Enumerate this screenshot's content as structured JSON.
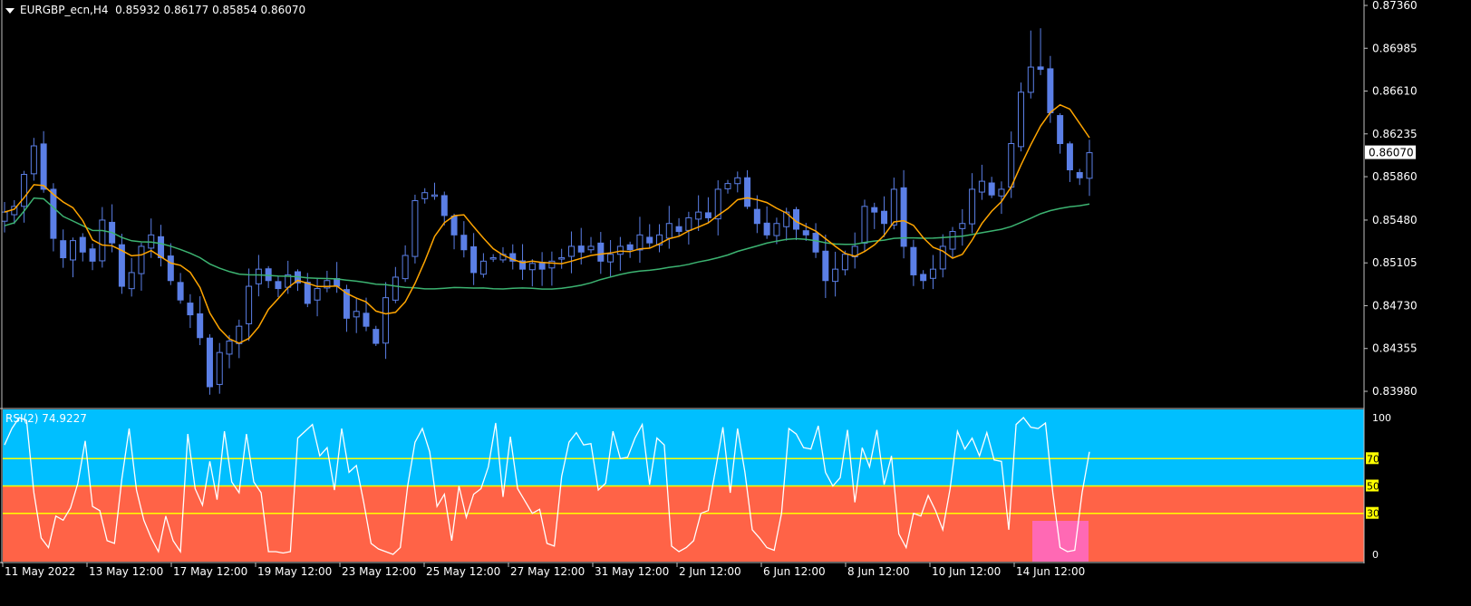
{
  "header": {
    "symbol": "EURGBP_ecn,H4",
    "open": "0.85932",
    "high": "0.86177",
    "low": "0.85854",
    "close": "0.86070"
  },
  "current_price_label": "0.86070",
  "indicator": {
    "label": "RSI(2) 74.9227"
  },
  "colors": {
    "background": "#000000",
    "candle": "#5b7fe6",
    "ma_fast": "#ffa500",
    "ma_slow": "#3cb371",
    "rsi_upper_bg": "#00bfff",
    "rsi_lower_bg": "#ff6347",
    "rsi_line": "#ffffff",
    "rsi_levels": "#ffff00",
    "highlight": "#ff69b4"
  },
  "chart_data": [
    {
      "type": "candlestick",
      "title": "EURGBP_ecn,H4",
      "ylim": [
        0.8378,
        0.8736
      ],
      "y_ticks": [
        "0.87360",
        "0.86985",
        "0.86610",
        "0.86235",
        "0.85860",
        "0.85480",
        "0.85105",
        "0.84730",
        "0.84355",
        "0.83980"
      ],
      "y_tick_values": [
        0.8736,
        0.86985,
        0.8661,
        0.86235,
        0.8586,
        0.8548,
        0.85105,
        0.8473,
        0.84355,
        0.8398
      ],
      "x_ticks": [
        "11 May 2022",
        "13 May 12:00",
        "17 May 12:00",
        "19 May 12:00",
        "23 May 12:00",
        "25 May 12:00",
        "27 May 12:00",
        "31 May 12:00",
        "2 Jun 12:00",
        "6 Jun 12:00",
        "8 Jun 12:00",
        "10 Jun 12:00",
        "14 Jun 12:00"
      ],
      "close_anchors": [
        0.8555,
        0.856,
        0.8588,
        0.8613,
        0.8575,
        0.8532,
        0.8515,
        0.853,
        0.852,
        0.8512,
        0.8548,
        0.8528,
        0.849,
        0.8502,
        0.8525,
        0.8535,
        0.8515,
        0.8495,
        0.8478,
        0.8465,
        0.8445,
        0.8402,
        0.8432,
        0.8442,
        0.8455,
        0.849,
        0.8505,
        0.8495,
        0.8488,
        0.85,
        0.8493,
        0.8475,
        0.8488,
        0.8495,
        0.849,
        0.8462,
        0.8468,
        0.8455,
        0.844,
        0.848,
        0.8498,
        0.8517,
        0.8565,
        0.8572,
        0.857,
        0.8552,
        0.8535,
        0.8522,
        0.8502,
        0.8512,
        0.8515,
        0.8518,
        0.8512,
        0.8505,
        0.851,
        0.8505,
        0.8512,
        0.8515,
        0.8525,
        0.852,
        0.8525,
        0.8512,
        0.8518,
        0.8525,
        0.8522,
        0.8535,
        0.8528,
        0.8535,
        0.8545,
        0.8538,
        0.855,
        0.8555,
        0.855,
        0.8575,
        0.858,
        0.8585,
        0.856,
        0.8545,
        0.8535,
        0.8545,
        0.8555,
        0.854,
        0.8535,
        0.852,
        0.8495,
        0.8505,
        0.8518,
        0.8525,
        0.856,
        0.8555,
        0.8545,
        0.8575,
        0.8525,
        0.85,
        0.8495,
        0.8505,
        0.8525,
        0.8538,
        0.8545,
        0.8575,
        0.8582,
        0.857,
        0.8575,
        0.8615,
        0.866,
        0.8682,
        0.868,
        0.8642,
        0.8615,
        0.8592,
        0.8585,
        0.8607
      ],
      "series": [
        {
          "name": "",
          "values": []
        }
      ]
    },
    {
      "type": "line",
      "title": "RSI(2) 74.9227",
      "ylim": [
        0,
        100
      ],
      "y_ticks": [
        "100",
        "70",
        "50",
        "30",
        "0"
      ],
      "y_tick_values": [
        100,
        70,
        50,
        30,
        0
      ],
      "levels": [
        70,
        50,
        30
      ],
      "values": [
        80,
        92,
        100,
        98,
        45,
        12,
        5,
        28,
        25,
        34,
        52,
        83,
        35,
        32,
        10,
        8,
        55,
        92,
        47,
        25,
        12,
        2,
        28,
        10,
        2,
        88,
        48,
        36,
        68,
        40,
        90,
        53,
        45,
        88,
        53,
        45,
        2,
        2,
        1,
        2,
        85,
        90,
        95,
        72,
        78,
        47,
        92,
        60,
        65,
        38,
        8,
        4,
        2,
        0,
        5,
        50,
        82,
        92,
        75,
        35,
        44,
        10,
        50,
        27,
        44,
        48,
        64,
        96,
        42,
        86,
        48,
        39,
        30,
        33,
        8,
        6,
        57,
        82,
        89,
        80,
        81,
        47,
        52,
        90,
        70,
        71,
        85,
        95,
        51,
        85,
        80,
        6,
        2,
        5,
        10,
        30,
        32,
        62,
        93,
        45,
        92,
        60,
        18,
        12,
        5,
        3,
        30,
        92,
        88,
        78,
        77,
        94,
        60,
        50,
        56,
        91,
        38,
        78,
        64,
        91,
        51,
        72,
        15,
        5,
        30,
        28,
        43,
        32,
        18,
        48,
        90,
        77,
        85,
        72,
        89,
        69,
        68,
        18,
        95,
        100,
        93,
        92,
        96,
        45,
        5,
        2,
        3,
        45,
        75
      ]
    }
  ]
}
